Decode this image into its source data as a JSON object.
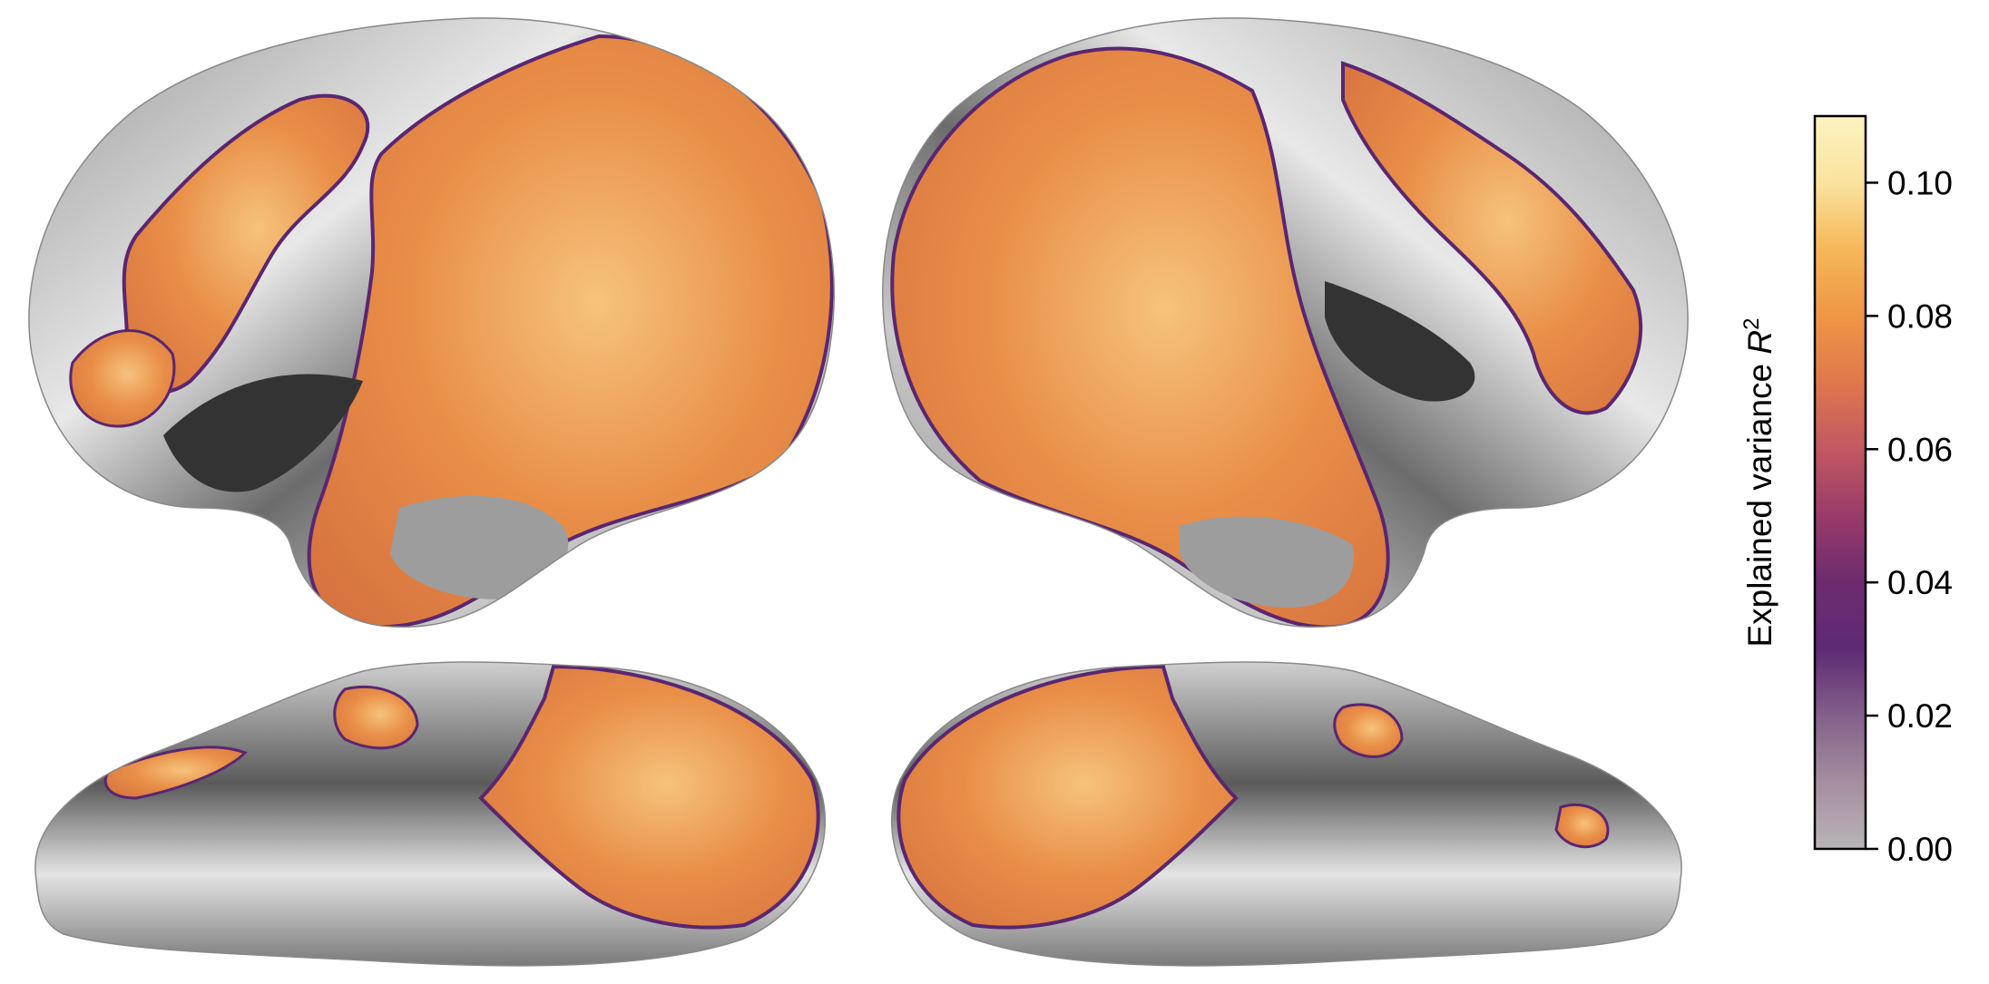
{
  "colorbar": {
    "label_prefix": "Explained variance ",
    "label_symbol": "R",
    "label_exponent": "2",
    "min": 0.0,
    "max": 0.11,
    "ticks": [
      {
        "value": 0.0,
        "label": "0.00"
      },
      {
        "value": 0.02,
        "label": "0.02"
      },
      {
        "value": 0.04,
        "label": "0.04"
      },
      {
        "value": 0.06,
        "label": "0.06"
      },
      {
        "value": 0.08,
        "label": "0.08"
      },
      {
        "value": 0.1,
        "label": "0.10"
      }
    ],
    "colormap": [
      "#b8b4b6",
      "#a58ea0",
      "#83608a",
      "#5e2a73",
      "#6d2b6e",
      "#993b6a",
      "#c25862",
      "#e0774c",
      "#ef9645",
      "#f6b759",
      "#fae39e",
      "#fcf3c0"
    ]
  },
  "views": [
    {
      "name": "left-hemisphere-lateral"
    },
    {
      "name": "right-hemisphere-lateral"
    },
    {
      "name": "left-hemisphere-ventral"
    },
    {
      "name": "right-hemisphere-ventral"
    }
  ],
  "colors": {
    "overlay_main": "#e58a47",
    "overlay_light": "#f5c37a",
    "overlay_edge": "#5a2670",
    "surface_dark": "#2b2b2b",
    "surface_light": "#dcdcdc"
  }
}
